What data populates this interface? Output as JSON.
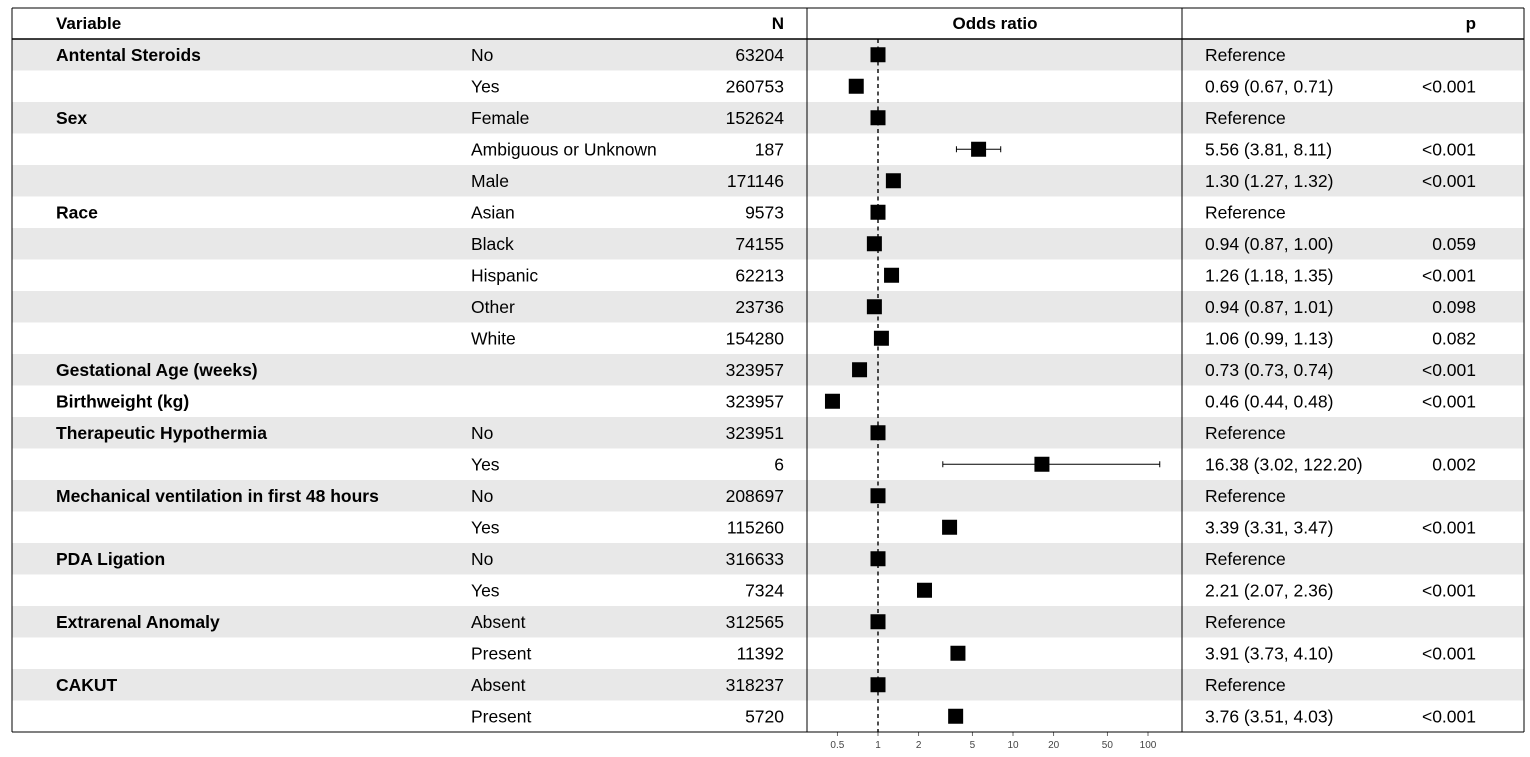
{
  "chart_data": {
    "type": "forest",
    "headers": {
      "variable": "Variable",
      "n": "N",
      "odds_ratio": "Odds ratio",
      "estimate": "",
      "p": "p"
    },
    "x_scale": "log",
    "xlim": [
      0.4,
      130
    ],
    "reference_line": 1,
    "x_ticks": [
      {
        "value": 0.5,
        "label": "0.5"
      },
      {
        "value": 1,
        "label": "1"
      },
      {
        "value": 2,
        "label": "2"
      },
      {
        "value": 5,
        "label": "5"
      },
      {
        "value": 10,
        "label": "10"
      },
      {
        "value": 20,
        "label": "20"
      },
      {
        "value": 50,
        "label": "50"
      },
      {
        "value": 100,
        "label": "100"
      }
    ],
    "rows": [
      {
        "variable": "Antental Steroids",
        "level": "No",
        "n": "63204",
        "or": 1,
        "lo": null,
        "hi": null,
        "estimate": "Reference",
        "p": ""
      },
      {
        "variable": "",
        "level": "Yes",
        "n": "260753",
        "or": 0.69,
        "lo": 0.67,
        "hi": 0.71,
        "estimate": "0.69 (0.67, 0.71)",
        "p": "<0.001"
      },
      {
        "variable": "Sex",
        "level": "Female",
        "n": "152624",
        "or": 1,
        "lo": null,
        "hi": null,
        "estimate": "Reference",
        "p": ""
      },
      {
        "variable": "",
        "level": "Ambiguous or Unknown",
        "n": "187",
        "or": 5.56,
        "lo": 3.81,
        "hi": 8.11,
        "estimate": "5.56 (3.81, 8.11)",
        "p": "<0.001"
      },
      {
        "variable": "",
        "level": "Male",
        "n": "171146",
        "or": 1.3,
        "lo": 1.27,
        "hi": 1.32,
        "estimate": "1.30 (1.27, 1.32)",
        "p": "<0.001"
      },
      {
        "variable": "Race",
        "level": "Asian",
        "n": "9573",
        "or": 1,
        "lo": null,
        "hi": null,
        "estimate": "Reference",
        "p": ""
      },
      {
        "variable": "",
        "level": "Black",
        "n": "74155",
        "or": 0.94,
        "lo": 0.87,
        "hi": 1.0,
        "estimate": "0.94 (0.87, 1.00)",
        "p": "0.059"
      },
      {
        "variable": "",
        "level": "Hispanic",
        "n": "62213",
        "or": 1.26,
        "lo": 1.18,
        "hi": 1.35,
        "estimate": "1.26 (1.18, 1.35)",
        "p": "<0.001"
      },
      {
        "variable": "",
        "level": "Other",
        "n": "23736",
        "or": 0.94,
        "lo": 0.87,
        "hi": 1.01,
        "estimate": "0.94 (0.87, 1.01)",
        "p": "0.098"
      },
      {
        "variable": "",
        "level": "White",
        "n": "154280",
        "or": 1.06,
        "lo": 0.99,
        "hi": 1.13,
        "estimate": "1.06 (0.99, 1.13)",
        "p": "0.082"
      },
      {
        "variable": "Gestational Age (weeks)",
        "level": "",
        "n": "323957",
        "or": 0.73,
        "lo": 0.73,
        "hi": 0.74,
        "estimate": "0.73 (0.73, 0.74)",
        "p": "<0.001"
      },
      {
        "variable": "Birthweight (kg)",
        "level": "",
        "n": "323957",
        "or": 0.46,
        "lo": 0.44,
        "hi": 0.48,
        "estimate": "0.46 (0.44, 0.48)",
        "p": "<0.001"
      },
      {
        "variable": "Therapeutic Hypothermia",
        "level": "No",
        "n": "323951",
        "or": 1,
        "lo": null,
        "hi": null,
        "estimate": "Reference",
        "p": ""
      },
      {
        "variable": "",
        "level": "Yes",
        "n": "6",
        "or": 16.38,
        "lo": 3.02,
        "hi": 122.2,
        "estimate": "16.38 (3.02, 122.20)",
        "p": "0.002"
      },
      {
        "variable": "Mechanical ventilation in first 48 hours",
        "level": "No",
        "n": "208697",
        "or": 1,
        "lo": null,
        "hi": null,
        "estimate": "Reference",
        "p": ""
      },
      {
        "variable": "",
        "level": "Yes",
        "n": "115260",
        "or": 3.39,
        "lo": 3.31,
        "hi": 3.47,
        "estimate": "3.39 (3.31, 3.47)",
        "p": "<0.001"
      },
      {
        "variable": "PDA Ligation",
        "level": "No",
        "n": "316633",
        "or": 1,
        "lo": null,
        "hi": null,
        "estimate": "Reference",
        "p": ""
      },
      {
        "variable": "",
        "level": "Yes",
        "n": "7324",
        "or": 2.21,
        "lo": 2.07,
        "hi": 2.36,
        "estimate": "2.21 (2.07, 2.36)",
        "p": "<0.001"
      },
      {
        "variable": "Extrarenal Anomaly",
        "level": "Absent",
        "n": "312565",
        "or": 1,
        "lo": null,
        "hi": null,
        "estimate": "Reference",
        "p": ""
      },
      {
        "variable": "",
        "level": "Present",
        "n": "11392",
        "or": 3.91,
        "lo": 3.73,
        "hi": 4.1,
        "estimate": "3.91 (3.73, 4.10)",
        "p": "<0.001"
      },
      {
        "variable": "CAKUT",
        "level": "Absent",
        "n": "318237",
        "or": 1,
        "lo": null,
        "hi": null,
        "estimate": "Reference",
        "p": ""
      },
      {
        "variable": "",
        "level": "Present",
        "n": "5720",
        "or": 3.76,
        "lo": 3.51,
        "hi": 4.03,
        "estimate": "3.76 (3.51, 4.03)",
        "p": "<0.001"
      }
    ],
    "colors": {
      "stripe": "#e8e8e8",
      "marker": "#000000"
    }
  }
}
